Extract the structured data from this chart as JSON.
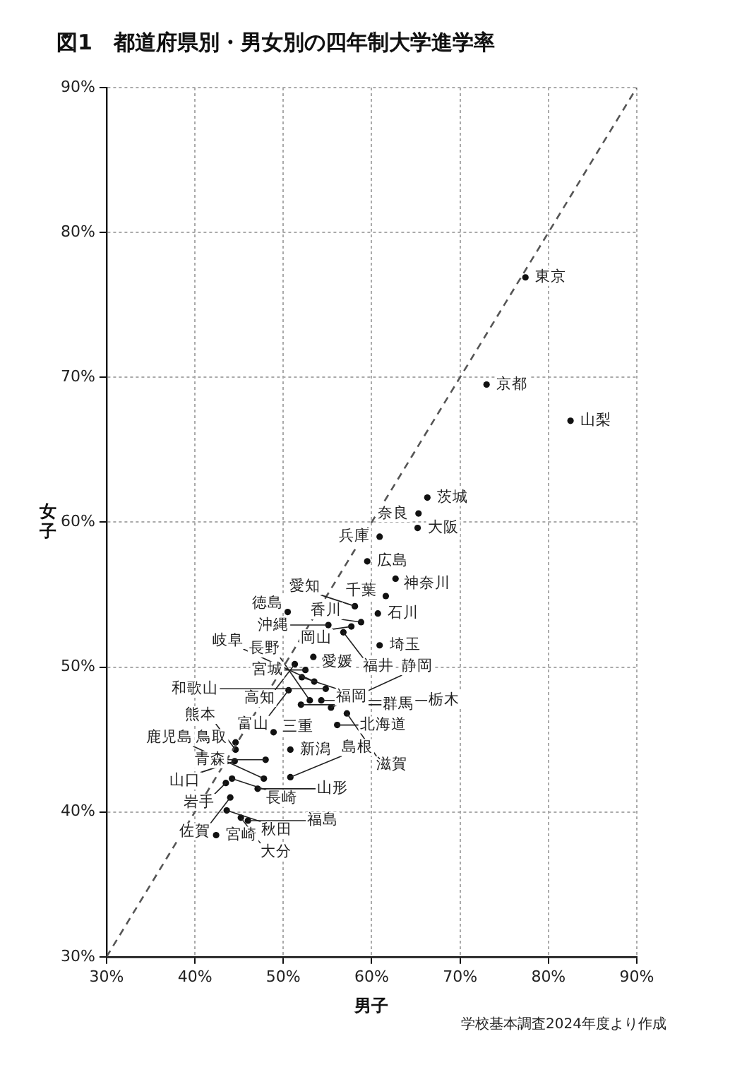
{
  "chart_data": {
    "type": "scatter",
    "title": "図1　都道府県別・男女別の四年制大学進学率",
    "xlabel": "男子",
    "ylabel": "女子",
    "annotations": [
      "学校基本調査2024年度より作成"
    ],
    "xlim": [
      30,
      90
    ],
    "ylim": [
      30,
      90
    ],
    "xticks": [
      {
        "value": 30,
        "label": "30%"
      },
      {
        "value": 40,
        "label": "40%"
      },
      {
        "value": 50,
        "label": "50%"
      },
      {
        "value": 60,
        "label": "60%"
      },
      {
        "value": 70,
        "label": "70%"
      },
      {
        "value": 80,
        "label": "80%"
      },
      {
        "value": 90,
        "label": "90%"
      }
    ],
    "yticks": [
      {
        "value": 30,
        "label": "30%"
      },
      {
        "value": 40,
        "label": "40%"
      },
      {
        "value": 50,
        "label": "50%"
      },
      {
        "value": 60,
        "label": "60%"
      },
      {
        "value": 70,
        "label": "70%"
      },
      {
        "value": 80,
        "label": "80%"
      },
      {
        "value": 90,
        "label": "90%"
      }
    ],
    "grid": true,
    "legend": false,
    "marker": "circle",
    "series": [
      {
        "type": "line",
        "color": "#555555",
        "line_style": "dashed",
        "marker": "none",
        "x": [
          30,
          90
        ],
        "values": [
          30,
          90
        ]
      },
      {
        "name": "東京",
        "color": "#111111",
        "x": [
          77.4
        ],
        "values": [
          76.9
        ]
      },
      {
        "name": "京都",
        "color": "#111111",
        "x": [
          73.0
        ],
        "values": [
          69.5
        ]
      },
      {
        "name": "山梨",
        "color": "#111111",
        "x": [
          82.5
        ],
        "values": [
          67.0
        ]
      },
      {
        "name": "茨城",
        "color": "#111111",
        "x": [
          66.3
        ],
        "values": [
          61.7
        ]
      },
      {
        "name": "奈良",
        "color": "#111111",
        "x": [
          65.3
        ],
        "values": [
          60.6
        ]
      },
      {
        "name": "大阪",
        "color": "#111111",
        "x": [
          65.2
        ],
        "values": [
          59.6
        ]
      },
      {
        "name": "兵庫",
        "color": "#111111",
        "x": [
          60.9
        ],
        "values": [
          59.0
        ]
      },
      {
        "name": "広島",
        "color": "#111111",
        "x": [
          59.5
        ],
        "values": [
          57.3
        ]
      },
      {
        "name": "神奈川",
        "color": "#111111",
        "x": [
          62.7
        ],
        "values": [
          56.1
        ]
      },
      {
        "name": "千葉",
        "color": "#111111",
        "x": [
          61.6
        ],
        "values": [
          54.9
        ]
      },
      {
        "name": "石川",
        "color": "#111111",
        "x": [
          60.7
        ],
        "values": [
          53.7
        ]
      },
      {
        "name": "香川",
        "color": "#111111",
        "x": [
          58.8
        ],
        "values": [
          53.1
        ]
      },
      {
        "name": "愛知",
        "color": "#111111",
        "x": [
          58.1
        ],
        "values": [
          54.2
        ]
      },
      {
        "name": "岡山",
        "color": "#111111",
        "x": [
          57.7
        ],
        "values": [
          52.8
        ]
      },
      {
        "name": "福井",
        "color": "#111111",
        "x": [
          56.8
        ],
        "values": [
          52.4
        ]
      },
      {
        "name": "埼玉",
        "color": "#111111",
        "x": [
          60.9
        ],
        "values": [
          51.5
        ]
      },
      {
        "name": "沖縄",
        "color": "#111111",
        "x": [
          55.1
        ],
        "values": [
          52.9
        ]
      },
      {
        "name": "愛媛",
        "color": "#111111",
        "x": [
          53.4
        ],
        "values": [
          50.7
        ]
      },
      {
        "name": "宮城",
        "color": "#111111",
        "x": [
          52.5
        ],
        "values": [
          49.8
        ]
      },
      {
        "name": "福岡",
        "color": "#111111",
        "x": [
          52.1
        ],
        "values": [
          49.3
        ]
      },
      {
        "name": "高知",
        "color": "#111111",
        "x": [
          51.3
        ],
        "values": [
          50.2
        ]
      },
      {
        "name": "徳島",
        "color": "#111111",
        "x": [
          50.5
        ],
        "values": [
          53.8
        ]
      },
      {
        "name": "富山",
        "color": "#111111",
        "x": [
          50.6
        ],
        "values": [
          48.4
        ]
      },
      {
        "name": "新潟",
        "color": "#111111",
        "x": [
          50.8
        ],
        "values": [
          44.3
        ]
      },
      {
        "name": "三重",
        "color": "#111111",
        "x": [
          48.9
        ],
        "values": [
          45.5
        ]
      },
      {
        "name": "青森",
        "color": "#111111",
        "x": [
          48.0
        ],
        "values": [
          43.6
        ]
      },
      {
        "name": "鳥取",
        "color": "#111111",
        "x": [
          44.6
        ],
        "values": [
          44.8
        ]
      },
      {
        "name": "熊本",
        "color": "#111111",
        "x": [
          44.6
        ],
        "values": [
          44.3
        ]
      },
      {
        "name": "山口",
        "color": "#111111",
        "x": [
          44.5
        ],
        "values": [
          43.5
        ]
      },
      {
        "name": "長崎",
        "color": "#111111",
        "x": [
          44.2
        ],
        "values": [
          42.3
        ]
      },
      {
        "name": "岩手",
        "color": "#111111",
        "x": [
          43.5
        ],
        "values": [
          42.0
        ]
      },
      {
        "name": "佐賀",
        "color": "#111111",
        "x": [
          44.0
        ],
        "values": [
          41.0
        ]
      },
      {
        "name": "宮崎",
        "color": "#111111",
        "x": [
          42.4
        ],
        "values": [
          38.4
        ]
      },
      {
        "name": "秋田",
        "color": "#111111",
        "x": [
          43.6
        ],
        "values": [
          40.1
        ]
      },
      {
        "name": "大分",
        "color": "#111111",
        "x": [
          45.2
        ],
        "values": [
          39.6
        ]
      },
      {
        "name": "福島",
        "color": "#111111",
        "x": [
          46.0
        ],
        "values": [
          39.4
        ]
      },
      {
        "name": "山形",
        "color": "#111111",
        "x": [
          47.1
        ],
        "values": [
          41.6
        ]
      },
      {
        "name": "鹿児島",
        "color": "#111111",
        "x": [
          47.8
        ],
        "values": [
          42.3
        ]
      },
      {
        "name": "島根",
        "color": "#111111",
        "x": [
          50.8
        ],
        "values": [
          42.4
        ]
      },
      {
        "name": "群馬",
        "color": "#111111",
        "x": [
          52.0
        ],
        "values": [
          47.4
        ]
      },
      {
        "name": "長野",
        "color": "#111111",
        "x": [
          53.0
        ],
        "values": [
          47.7
        ]
      },
      {
        "name": "北海道",
        "color": "#111111",
        "x": [
          56.1
        ],
        "values": [
          46.0
        ]
      },
      {
        "name": "静岡",
        "color": "#111111",
        "x": [
          55.4
        ],
        "values": [
          47.2
        ]
      },
      {
        "name": "滋賀",
        "color": "#111111",
        "x": [
          57.2
        ],
        "values": [
          46.8
        ]
      },
      {
        "name": "栃木",
        "color": "#111111",
        "x": [
          54.3
        ],
        "values": [
          47.7
        ]
      },
      {
        "name": "和歌山",
        "color": "#111111",
        "x": [
          54.8
        ],
        "values": [
          48.5
        ]
      },
      {
        "name": "岐阜",
        "color": "#111111",
        "x": [
          53.5
        ],
        "values": [
          49.0
        ]
      }
    ]
  }
}
